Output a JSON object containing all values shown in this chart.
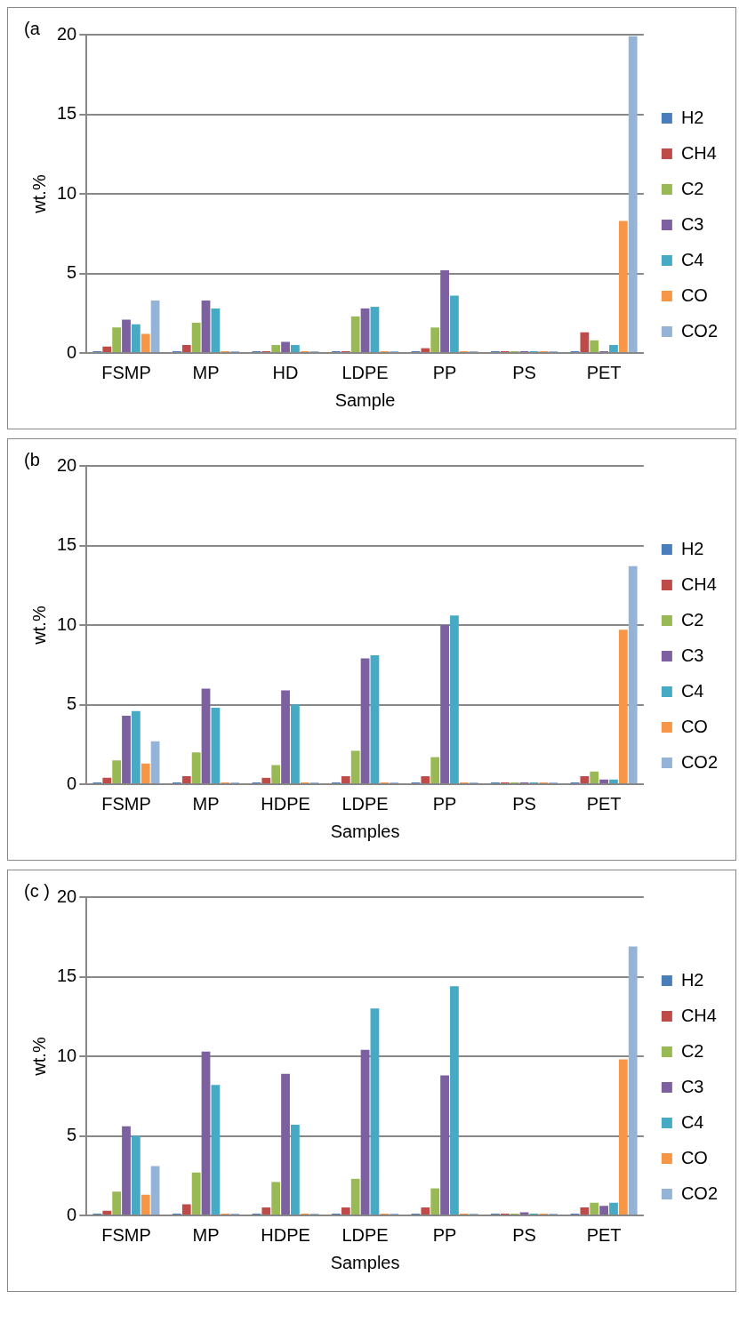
{
  "chart_data": [
    {
      "type": "bar",
      "annotations": [
        "(a"
      ],
      "xlabel": "Sample",
      "ylabel": "wt.%",
      "categories": [
        "FSMP",
        "MP",
        "HD",
        "LDPE",
        "PP",
        "PS",
        "PET"
      ],
      "ylim": [
        0,
        20
      ],
      "yticks": [
        0,
        5,
        10,
        15,
        20
      ],
      "grid": "y",
      "legend": "right",
      "series": [
        {
          "name": "H2",
          "color": "#4a7ebb",
          "values": [
            0,
            0,
            0,
            0,
            0,
            0,
            0
          ]
        },
        {
          "name": "CH4",
          "color": "#be4b48",
          "values": [
            0.4,
            0.5,
            0.1,
            0.1,
            0.3,
            0,
            1.3
          ]
        },
        {
          "name": "C2",
          "color": "#98b954",
          "values": [
            1.6,
            1.9,
            0.5,
            2.3,
            1.6,
            0,
            0.8
          ]
        },
        {
          "name": "C3",
          "color": "#7d60a0",
          "values": [
            2.1,
            3.3,
            0.7,
            2.8,
            5.2,
            0,
            0.1
          ]
        },
        {
          "name": "C4",
          "color": "#46aac5",
          "values": [
            1.8,
            2.8,
            0.5,
            2.9,
            3.6,
            0,
            0.5
          ]
        },
        {
          "name": "CO",
          "color": "#f79646",
          "values": [
            1.2,
            0,
            0,
            0,
            0,
            0,
            8.3
          ]
        },
        {
          "name": "CO2",
          "color": "#95b3d7",
          "values": [
            3.3,
            0,
            0,
            0,
            0,
            0,
            19.9
          ]
        }
      ]
    },
    {
      "type": "bar",
      "annotations": [
        "(b"
      ],
      "xlabel": "Samples",
      "ylabel": "wt.%",
      "categories": [
        "FSMP",
        "MP",
        "HDPE",
        "LDPE",
        "PP",
        "PS",
        "PET"
      ],
      "ylim": [
        0,
        20
      ],
      "yticks": [
        0,
        5,
        10,
        15,
        20
      ],
      "grid": "y",
      "legend": "right",
      "series": [
        {
          "name": "H2",
          "color": "#4a7ebb",
          "values": [
            0,
            0,
            0,
            0,
            0,
            0,
            0
          ]
        },
        {
          "name": "CH4",
          "color": "#be4b48",
          "values": [
            0.4,
            0.5,
            0.4,
            0.5,
            0.5,
            0,
            0.5
          ]
        },
        {
          "name": "C2",
          "color": "#98b954",
          "values": [
            1.5,
            2.0,
            1.2,
            2.1,
            1.7,
            0,
            0.8
          ]
        },
        {
          "name": "C3",
          "color": "#7d60a0",
          "values": [
            4.3,
            6.0,
            5.9,
            7.9,
            10.0,
            0,
            0.3
          ]
        },
        {
          "name": "C4",
          "color": "#46aac5",
          "values": [
            4.6,
            4.8,
            5.0,
            8.1,
            10.6,
            0,
            0.3
          ]
        },
        {
          "name": "CO",
          "color": "#f79646",
          "values": [
            1.3,
            0,
            0,
            0,
            0,
            0,
            9.7
          ]
        },
        {
          "name": "CO2",
          "color": "#95b3d7",
          "values": [
            2.7,
            0,
            0,
            0,
            0,
            0,
            13.7
          ]
        }
      ]
    },
    {
      "type": "bar",
      "annotations": [
        "(c )"
      ],
      "xlabel": "Samples",
      "ylabel": "wt.%",
      "categories": [
        "FSMP",
        "MP",
        "HDPE",
        "LDPE",
        "PP",
        "PS",
        "PET"
      ],
      "ylim": [
        0,
        20
      ],
      "yticks": [
        0,
        5,
        10,
        15,
        20
      ],
      "grid": "y",
      "legend": "right",
      "series": [
        {
          "name": "H2",
          "color": "#4a7ebb",
          "values": [
            0,
            0,
            0,
            0,
            0,
            0,
            0
          ]
        },
        {
          "name": "CH4",
          "color": "#be4b48",
          "values": [
            0.3,
            0.7,
            0.5,
            0.5,
            0.5,
            0,
            0.5
          ]
        },
        {
          "name": "C2",
          "color": "#98b954",
          "values": [
            1.5,
            2.7,
            2.1,
            2.3,
            1.7,
            0.1,
            0.8
          ]
        },
        {
          "name": "C3",
          "color": "#7d60a0",
          "values": [
            5.6,
            10.3,
            8.9,
            10.4,
            8.8,
            0.2,
            0.6
          ]
        },
        {
          "name": "C4",
          "color": "#46aac5",
          "values": [
            5.0,
            8.2,
            5.7,
            13.0,
            14.4,
            0.1,
            0.8
          ]
        },
        {
          "name": "CO",
          "color": "#f79646",
          "values": [
            1.3,
            0,
            0,
            0,
            0,
            0,
            9.8
          ]
        },
        {
          "name": "CO2",
          "color": "#95b3d7",
          "values": [
            3.1,
            0,
            0,
            0,
            0,
            0,
            16.9
          ]
        }
      ]
    }
  ]
}
